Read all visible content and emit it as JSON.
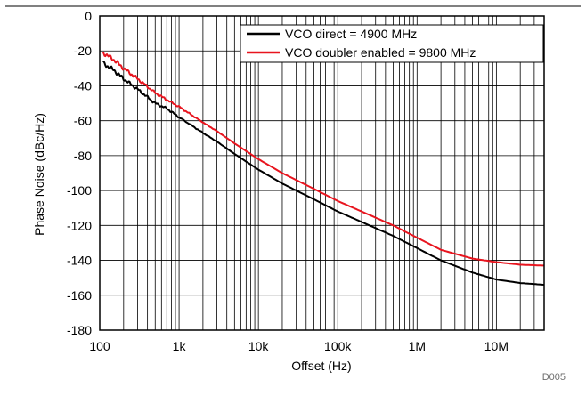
{
  "figure_id": "D005",
  "chart_data": {
    "type": "line",
    "xlabel": "Offset (Hz)",
    "ylabel": "Phase Noise (dBc/Hz)",
    "x_scale": "log",
    "xlim": [
      100,
      40000000
    ],
    "ylim": [
      -180,
      0
    ],
    "x_ticks": [
      {
        "value": 100,
        "label": "100"
      },
      {
        "value": 1000,
        "label": "1k"
      },
      {
        "value": 10000,
        "label": "10k"
      },
      {
        "value": 100000,
        "label": "100k"
      },
      {
        "value": 1000000,
        "label": "1M"
      },
      {
        "value": 10000000,
        "label": "10M"
      }
    ],
    "y_ticks": [
      0,
      -20,
      -40,
      -60,
      -80,
      -100,
      -120,
      -140,
      -160,
      -180
    ],
    "grid": true,
    "legend_position": "top-right",
    "series": [
      {
        "name": "VCO direct = 4900 MHz",
        "color": "#000000",
        "points": [
          [
            110,
            -27
          ],
          [
            150,
            -31
          ],
          [
            200,
            -36
          ],
          [
            300,
            -42
          ],
          [
            500,
            -50
          ],
          [
            700,
            -53
          ],
          [
            1000,
            -58
          ],
          [
            2000,
            -67
          ],
          [
            3000,
            -72
          ],
          [
            5000,
            -79
          ],
          [
            10000,
            -88
          ],
          [
            20000,
            -96
          ],
          [
            50000,
            -105
          ],
          [
            100000,
            -112
          ],
          [
            200000,
            -118
          ],
          [
            500000,
            -126
          ],
          [
            1000000,
            -133
          ],
          [
            2000000,
            -140
          ],
          [
            5000000,
            -147
          ],
          [
            10000000,
            -151
          ],
          [
            20000000,
            -153
          ],
          [
            40000000,
            -154
          ]
        ]
      },
      {
        "name": "VCO doubler enabled = 9800 MHz",
        "color": "#e8141e",
        "points": [
          [
            110,
            -21
          ],
          [
            150,
            -25
          ],
          [
            200,
            -30
          ],
          [
            300,
            -36
          ],
          [
            500,
            -44
          ],
          [
            700,
            -48
          ],
          [
            1000,
            -52
          ],
          [
            2000,
            -61
          ],
          [
            3000,
            -66
          ],
          [
            5000,
            -73
          ],
          [
            10000,
            -82
          ],
          [
            20000,
            -90
          ],
          [
            50000,
            -99
          ],
          [
            100000,
            -106
          ],
          [
            200000,
            -112
          ],
          [
            500000,
            -120
          ],
          [
            1000000,
            -127
          ],
          [
            2000000,
            -134
          ],
          [
            5000000,
            -139
          ],
          [
            10000000,
            -141
          ],
          [
            20000000,
            -142.5
          ],
          [
            40000000,
            -143
          ]
        ]
      }
    ]
  }
}
